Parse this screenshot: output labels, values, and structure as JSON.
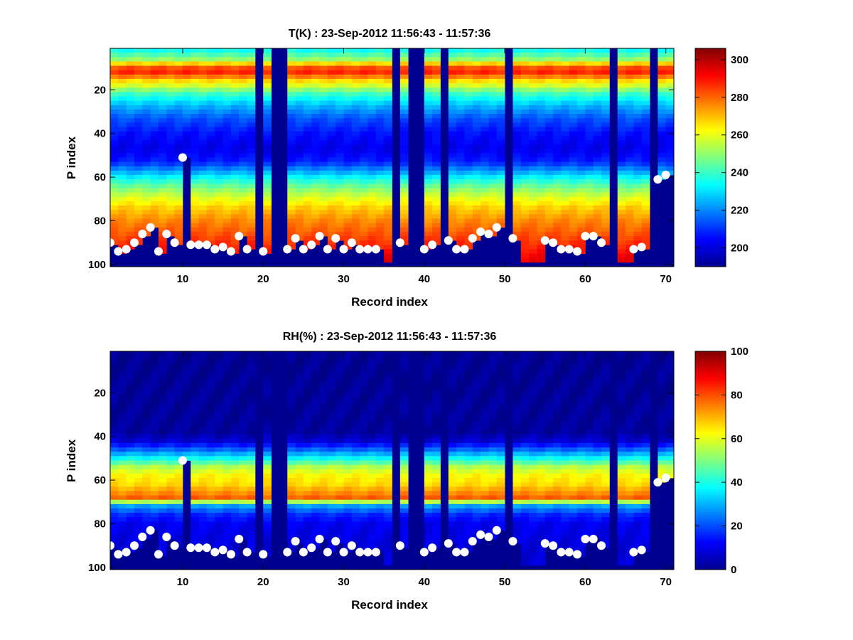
{
  "figure": {
    "background": "#ffffff",
    "marker_color": "#ffffff"
  },
  "chart_data": [
    {
      "type": "heatmap",
      "title": "T(K) : 23-Sep-2012 11:56:43 - 11:57:36",
      "xlabel": "Record index",
      "ylabel": "P index",
      "xlim": [
        1,
        71
      ],
      "ylim": [
        1,
        101
      ],
      "y_reversed": true,
      "xticks": [
        10,
        20,
        30,
        40,
        50,
        60,
        70
      ],
      "yticks": [
        20,
        40,
        60,
        80,
        100
      ],
      "colorbar": {
        "range": [
          190,
          306
        ],
        "ticks": [
          200,
          220,
          240,
          260,
          280,
          300
        ],
        "colormap": "jet"
      },
      "missing_records": [
        19,
        21,
        22,
        36,
        38,
        39,
        42,
        50,
        63,
        68
      ],
      "surface_index": [
        90,
        94,
        93,
        90,
        86,
        83,
        94,
        86,
        90,
        51,
        91,
        91,
        91,
        93,
        92,
        94,
        87,
        93,
        0,
        94,
        0,
        0,
        93,
        88,
        93,
        91,
        87,
        93,
        88,
        93,
        90,
        93,
        93,
        93,
        0,
        0,
        90,
        0,
        0,
        93,
        91,
        0,
        89,
        93,
        93,
        88,
        85,
        86,
        83,
        0,
        88,
        0,
        0,
        0,
        89,
        90,
        93,
        93,
        94,
        87,
        87,
        90,
        0,
        0,
        0,
        93,
        92,
        0,
        61,
        59
      ],
      "profile_K": [
        {
          "p": 1,
          "value": 232
        },
        {
          "p": 6,
          "value": 250
        },
        {
          "p": 9,
          "value": 276
        },
        {
          "p": 11,
          "value": 290
        },
        {
          "p": 13,
          "value": 284
        },
        {
          "p": 15,
          "value": 270
        },
        {
          "p": 18,
          "value": 258
        },
        {
          "p": 22,
          "value": 240
        },
        {
          "p": 27,
          "value": 226
        },
        {
          "p": 33,
          "value": 214
        },
        {
          "p": 40,
          "value": 206
        },
        {
          "p": 47,
          "value": 202
        },
        {
          "p": 53,
          "value": 208
        },
        {
          "p": 57,
          "value": 222
        },
        {
          "p": 61,
          "value": 236
        },
        {
          "p": 65,
          "value": 248
        },
        {
          "p": 69,
          "value": 258
        },
        {
          "p": 74,
          "value": 268
        },
        {
          "p": 80,
          "value": 276
        },
        {
          "p": 86,
          "value": 282
        },
        {
          "p": 92,
          "value": 288
        },
        {
          "p": 96,
          "value": 292
        },
        {
          "p": 100,
          "value": 294
        }
      ]
    },
    {
      "type": "heatmap",
      "title": "RH(%) : 23-Sep-2012 11:56:43 - 11:57:36",
      "xlabel": "Record index",
      "ylabel": "P index",
      "xlim": [
        1,
        71
      ],
      "ylim": [
        1,
        101
      ],
      "y_reversed": true,
      "xticks": [
        10,
        20,
        30,
        40,
        50,
        60,
        70
      ],
      "yticks": [
        20,
        40,
        60,
        80,
        100
      ],
      "colorbar": {
        "range": [
          0,
          100
        ],
        "ticks": [
          0,
          20,
          40,
          60,
          80,
          100
        ],
        "colormap": "jet"
      },
      "missing_records": [
        19,
        21,
        22,
        36,
        38,
        39,
        42,
        50,
        63,
        68
      ],
      "surface_index": [
        90,
        94,
        93,
        90,
        86,
        83,
        94,
        86,
        90,
        51,
        91,
        91,
        91,
        93,
        92,
        94,
        87,
        93,
        0,
        94,
        0,
        0,
        93,
        88,
        93,
        91,
        87,
        93,
        88,
        93,
        90,
        93,
        93,
        93,
        0,
        0,
        90,
        0,
        0,
        93,
        91,
        0,
        89,
        93,
        93,
        88,
        85,
        86,
        83,
        0,
        88,
        0,
        0,
        0,
        89,
        90,
        93,
        93,
        94,
        87,
        87,
        90,
        0,
        0,
        0,
        93,
        92,
        0,
        61,
        59
      ],
      "profile_pct": [
        {
          "p": 1,
          "value": 2
        },
        {
          "p": 38,
          "value": 3
        },
        {
          "p": 42,
          "value": 8
        },
        {
          "p": 46,
          "value": 22
        },
        {
          "p": 50,
          "value": 38
        },
        {
          "p": 54,
          "value": 55
        },
        {
          "p": 58,
          "value": 63
        },
        {
          "p": 62,
          "value": 66
        },
        {
          "p": 65,
          "value": 72
        },
        {
          "p": 68,
          "value": 78
        },
        {
          "p": 70,
          "value": 55
        },
        {
          "p": 72,
          "value": 28
        },
        {
          "p": 76,
          "value": 16
        },
        {
          "p": 80,
          "value": 11
        },
        {
          "p": 90,
          "value": 9
        },
        {
          "p": 100,
          "value": 8
        }
      ]
    }
  ]
}
